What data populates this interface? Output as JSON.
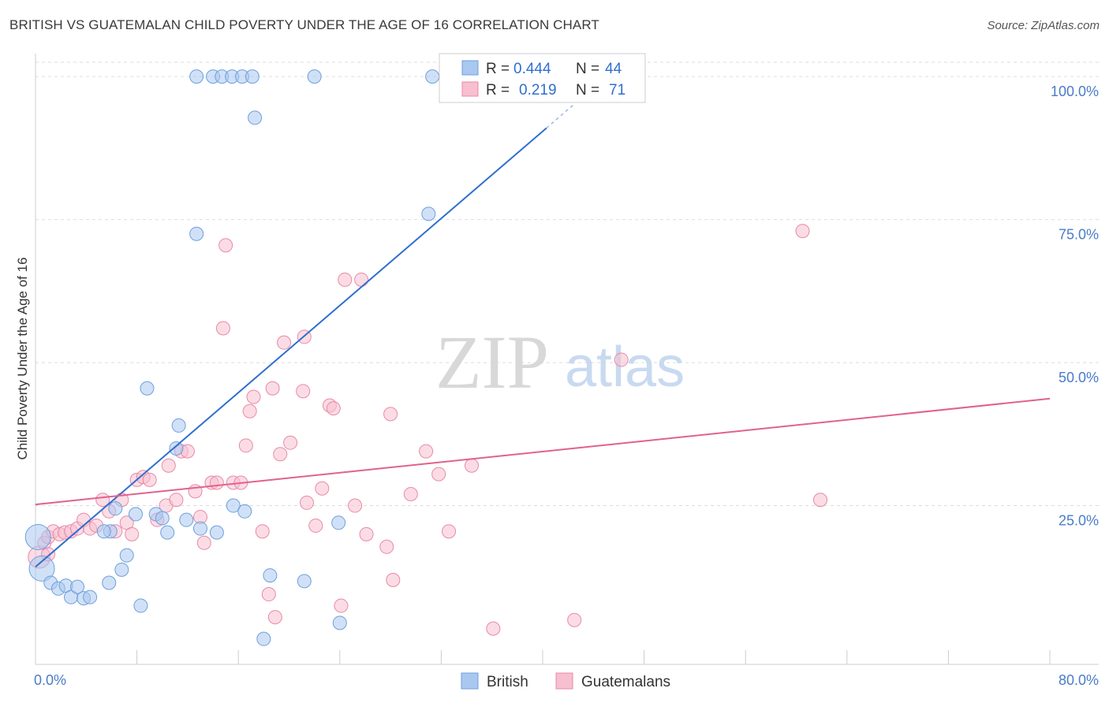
{
  "header": {
    "title": "BRITISH VS GUATEMALAN CHILD POVERTY UNDER THE AGE OF 16 CORRELATION CHART",
    "source": "Source: ZipAtlas.com"
  },
  "watermark": {
    "zip": "ZIP",
    "atlas": "atlas"
  },
  "legend": {
    "r_label": "R =",
    "n_label": "N =",
    "british": {
      "r": "0.444",
      "n": "44"
    },
    "guatemalans": {
      "r": "0.219",
      "n": "71"
    }
  },
  "bottom_legend": {
    "british": "British",
    "guatemalans": "Guatemalans"
  },
  "chart_data": {
    "type": "scatter",
    "title": "BRITISH VS GUATEMALAN CHILD POVERTY UNDER THE AGE OF 16 CORRELATION CHART",
    "ylabel": "Child Poverty Under the Age of 16",
    "xlabel": "",
    "xlim": [
      0,
      80
    ],
    "ylim": [
      0,
      102.5
    ],
    "x_tick_labels": [
      "0.0%",
      "80.0%"
    ],
    "y_tick_labels": [
      "100.0%",
      "75.0%",
      "50.0%",
      "25.0%"
    ],
    "y_ticks": [
      100,
      75,
      50,
      25
    ],
    "grid": true,
    "colors": {
      "british": "#a9c8f0",
      "british_edge": "#6f9fdc",
      "british_line": "#2f6fce",
      "guatemalans": "#f7bfd0",
      "guatemalans_edge": "#e88aa8",
      "guatemalans_line": "#e0628e"
    },
    "series": [
      {
        "name": "British",
        "trend": {
          "x": [
            0,
            40.3
          ],
          "y": [
            14.3,
            91.0
          ],
          "dashed_to": [
            42.5,
            95.2
          ]
        },
        "points": [
          [
            0.2,
            19.5
          ],
          [
            0.5,
            14.0
          ],
          [
            1.2,
            11.5
          ],
          [
            1.8,
            10.5
          ],
          [
            2.4,
            11.0
          ],
          [
            2.8,
            9.0
          ],
          [
            3.3,
            10.8
          ],
          [
            3.8,
            8.8
          ],
          [
            4.3,
            9.0
          ],
          [
            5.9,
            20.5
          ],
          [
            5.4,
            20.5
          ],
          [
            5.8,
            11.5
          ],
          [
            6.3,
            24.5
          ],
          [
            6.8,
            13.8
          ],
          [
            7.2,
            16.3
          ],
          [
            7.9,
            23.5
          ],
          [
            8.3,
            7.5
          ],
          [
            8.8,
            45.5
          ],
          [
            9.5,
            23.5
          ],
          [
            10.0,
            22.8
          ],
          [
            10.4,
            20.3
          ],
          [
            11.1,
            35.0
          ],
          [
            11.3,
            39.0
          ],
          [
            11.9,
            22.5
          ],
          [
            13.0,
            21.0
          ],
          [
            14.3,
            20.3
          ],
          [
            15.6,
            25.0
          ],
          [
            16.5,
            24.0
          ],
          [
            18.5,
            12.8
          ],
          [
            21.2,
            11.8
          ],
          [
            23.9,
            22.0
          ],
          [
            24.0,
            4.5
          ],
          [
            18.0,
            1.7
          ],
          [
            31.0,
            76.0
          ],
          [
            12.7,
            72.5
          ],
          [
            17.3,
            92.8
          ],
          [
            12.7,
            100
          ],
          [
            14.0,
            100
          ],
          [
            14.7,
            100
          ],
          [
            15.5,
            100
          ],
          [
            16.3,
            100
          ],
          [
            17.1,
            100
          ],
          [
            22.0,
            100
          ],
          [
            31.3,
            100
          ]
        ]
      },
      {
        "name": "Guatemalans",
        "trend": {
          "x": [
            0,
            80
          ],
          "y": [
            25.2,
            43.7
          ]
        },
        "points": [
          [
            0.3,
            16.0
          ],
          [
            0.7,
            18.5
          ],
          [
            1.0,
            19.5
          ],
          [
            1.4,
            20.5
          ],
          [
            1.9,
            20.0
          ],
          [
            2.3,
            20.3
          ],
          [
            2.8,
            20.5
          ],
          [
            3.3,
            21.0
          ],
          [
            3.8,
            22.5
          ],
          [
            4.3,
            21.0
          ],
          [
            4.8,
            21.5
          ],
          [
            5.3,
            26.0
          ],
          [
            5.8,
            24.0
          ],
          [
            6.3,
            20.5
          ],
          [
            6.8,
            26.0
          ],
          [
            7.2,
            22.0
          ],
          [
            7.6,
            20.0
          ],
          [
            8.0,
            29.5
          ],
          [
            8.5,
            30.0
          ],
          [
            9.0,
            29.5
          ],
          [
            9.6,
            22.5
          ],
          [
            10.3,
            25.0
          ],
          [
            10.5,
            32.0
          ],
          [
            11.1,
            26.0
          ],
          [
            11.5,
            34.5
          ],
          [
            12.0,
            34.5
          ],
          [
            12.6,
            27.5
          ],
          [
            13.0,
            23.0
          ],
          [
            13.3,
            18.5
          ],
          [
            13.9,
            29.0
          ],
          [
            14.3,
            29.0
          ],
          [
            15.0,
            70.5
          ],
          [
            14.8,
            56.0
          ],
          [
            15.6,
            29.0
          ],
          [
            16.2,
            29.0
          ],
          [
            16.6,
            35.5
          ],
          [
            16.9,
            41.5
          ],
          [
            17.2,
            44.0
          ],
          [
            17.9,
            20.5
          ],
          [
            18.4,
            9.5
          ],
          [
            18.9,
            5.5
          ],
          [
            19.3,
            34.0
          ],
          [
            19.6,
            53.5
          ],
          [
            18.7,
            45.5
          ],
          [
            20.1,
            36.0
          ],
          [
            21.1,
            45.0
          ],
          [
            21.2,
            54.5
          ],
          [
            21.4,
            25.5
          ],
          [
            22.1,
            21.5
          ],
          [
            22.6,
            28.0
          ],
          [
            23.2,
            42.5
          ],
          [
            23.5,
            42.0
          ],
          [
            24.1,
            7.5
          ],
          [
            24.4,
            64.5
          ],
          [
            25.7,
            64.5
          ],
          [
            25.2,
            25.0
          ],
          [
            26.1,
            20.0
          ],
          [
            28.0,
            41.0
          ],
          [
            27.7,
            17.8
          ],
          [
            28.2,
            12.0
          ],
          [
            29.6,
            27.0
          ],
          [
            30.8,
            34.5
          ],
          [
            31.8,
            30.5
          ],
          [
            32.6,
            20.5
          ],
          [
            34.4,
            32.0
          ],
          [
            36.1,
            3.5
          ],
          [
            46.2,
            50.5
          ],
          [
            42.5,
            5.0
          ],
          [
            60.5,
            73.0
          ],
          [
            61.9,
            26.0
          ],
          [
            1.0,
            16.5
          ]
        ]
      }
    ]
  }
}
